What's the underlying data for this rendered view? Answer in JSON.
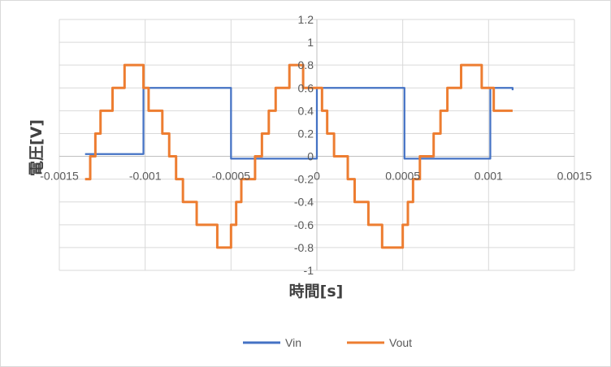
{
  "chart_data": {
    "type": "line",
    "xlabel": "時間[s]",
    "ylabel": "電圧[V]",
    "xlim": [
      -0.0015,
      0.0015
    ],
    "ylim": [
      -1,
      1.2
    ],
    "x_ticks": [
      -0.0015,
      -0.001,
      -0.0005,
      0,
      0.0005,
      0.001,
      0.0015
    ],
    "x_tick_labels": [
      "-0.0015",
      "-0.001",
      "-0.0005",
      "0",
      "0.0005",
      "0.001",
      "0.0015"
    ],
    "y_ticks": [
      -1,
      -0.8,
      -0.6,
      -0.4,
      -0.2,
      0,
      0.2,
      0.4,
      0.6,
      0.8,
      1,
      1.2
    ],
    "y_tick_labels": [
      "-1",
      "-0.8",
      "-0.6",
      "-0.4",
      "-0.2",
      "0",
      "0.2",
      "0.4",
      "0.6",
      "0.8",
      "1",
      "1.2"
    ],
    "grid": {
      "x": true,
      "y": true
    },
    "legend_position": "bottom",
    "series": [
      {
        "name": "Vin",
        "color": "#4472c4",
        "x": [
          -0.00135,
          -0.00101,
          -0.00101,
          -0.0005,
          -0.0005,
          0.0,
          0.0,
          0.00051,
          0.00051,
          0.00101,
          0.00101,
          0.00114
        ],
        "y": [
          0.02,
          0.02,
          0.6,
          0.56,
          -0.02,
          0.02,
          0.6,
          0.56,
          -0.02,
          0.02,
          0.6,
          0.58
        ]
      },
      {
        "name": "Vout",
        "color": "#ed7d31",
        "x": [
          -0.00135,
          -0.00132,
          -0.00129,
          -0.00126,
          -0.00123,
          -0.00119,
          -0.00116,
          -0.00112,
          -0.00108,
          -0.00104,
          -0.00101,
          -0.00098,
          -0.00094,
          -0.0009,
          -0.00086,
          -0.00082,
          -0.00078,
          -0.00074,
          -0.0007,
          -0.00066,
          -0.00062,
          -0.00058,
          -0.00054,
          -0.0005,
          -0.00047,
          -0.00044,
          -0.0004,
          -0.00036,
          -0.00032,
          -0.00028,
          -0.00024,
          -0.0002,
          -0.00016,
          -0.00012,
          -8e-05,
          -4e-05,
          0.0,
          3e-05,
          6e-05,
          0.0001,
          0.00014,
          0.00018,
          0.00022,
          0.00026,
          0.0003,
          0.00034,
          0.00038,
          0.00042,
          0.00046,
          0.0005,
          0.00053,
          0.00056,
          0.0006,
          0.00064,
          0.00068,
          0.00072,
          0.00076,
          0.0008,
          0.00084,
          0.00088,
          0.00092,
          0.00096,
          0.001,
          0.00103,
          0.00106,
          0.0011,
          0.00114
        ],
        "y": [
          -0.2,
          0.0,
          0.2,
          0.4,
          0.4,
          0.6,
          0.6,
          0.8,
          0.8,
          0.8,
          0.6,
          0.4,
          0.4,
          0.2,
          0.0,
          -0.2,
          -0.4,
          -0.4,
          -0.6,
          -0.6,
          -0.6,
          -0.8,
          -0.8,
          -0.6,
          -0.4,
          -0.2,
          -0.2,
          0.0,
          0.2,
          0.4,
          0.6,
          0.6,
          0.8,
          0.8,
          0.6,
          0.6,
          0.6,
          0.4,
          0.2,
          0.0,
          0.0,
          -0.2,
          -0.4,
          -0.4,
          -0.6,
          -0.6,
          -0.8,
          -0.8,
          -0.8,
          -0.6,
          -0.4,
          -0.2,
          0.0,
          0.0,
          0.2,
          0.4,
          0.6,
          0.6,
          0.8,
          0.8,
          0.8,
          0.6,
          0.6,
          0.4,
          0.4,
          0.4,
          0.4
        ]
      }
    ]
  }
}
